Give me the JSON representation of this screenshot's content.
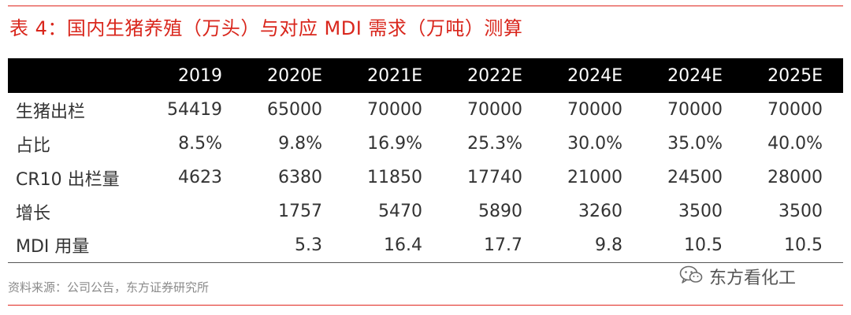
{
  "title": "表 4：国内生猪养殖（万头）与对应 MDI 需求（万吨）测算",
  "table": {
    "columns": [
      "",
      "2019",
      "2020E",
      "2021E",
      "2022E",
      "2024E",
      "2024E",
      "2025E"
    ],
    "rows": [
      {
        "label": "生猪出栏",
        "values": [
          "54419",
          "65000",
          "70000",
          "70000",
          "70000",
          "70000",
          "70000"
        ]
      },
      {
        "label": "占比",
        "values": [
          "8.5%",
          "9.8%",
          "16.9%",
          "25.3%",
          "30.0%",
          "35.0%",
          "40.0%"
        ]
      },
      {
        "label": "CR10 出栏量",
        "values": [
          "4623",
          "6380",
          "11850",
          "17740",
          "21000",
          "24500",
          "28000"
        ]
      },
      {
        "label": "增长",
        "values": [
          "",
          "1757",
          "5470",
          "5890",
          "3260",
          "3500",
          "3500"
        ]
      },
      {
        "label": "MDI 用量",
        "values": [
          "",
          "5.3",
          "16.4",
          "17.7",
          "9.8",
          "10.5",
          "10.5"
        ]
      }
    ]
  },
  "source": "资料来源：公司公告，东方证券研究所",
  "watermark": {
    "text": "东方看化工",
    "icon": "wechat-icon"
  },
  "colors": {
    "accent": "#d9261c",
    "header_bg": "#000000",
    "header_text": "#ffffff"
  }
}
